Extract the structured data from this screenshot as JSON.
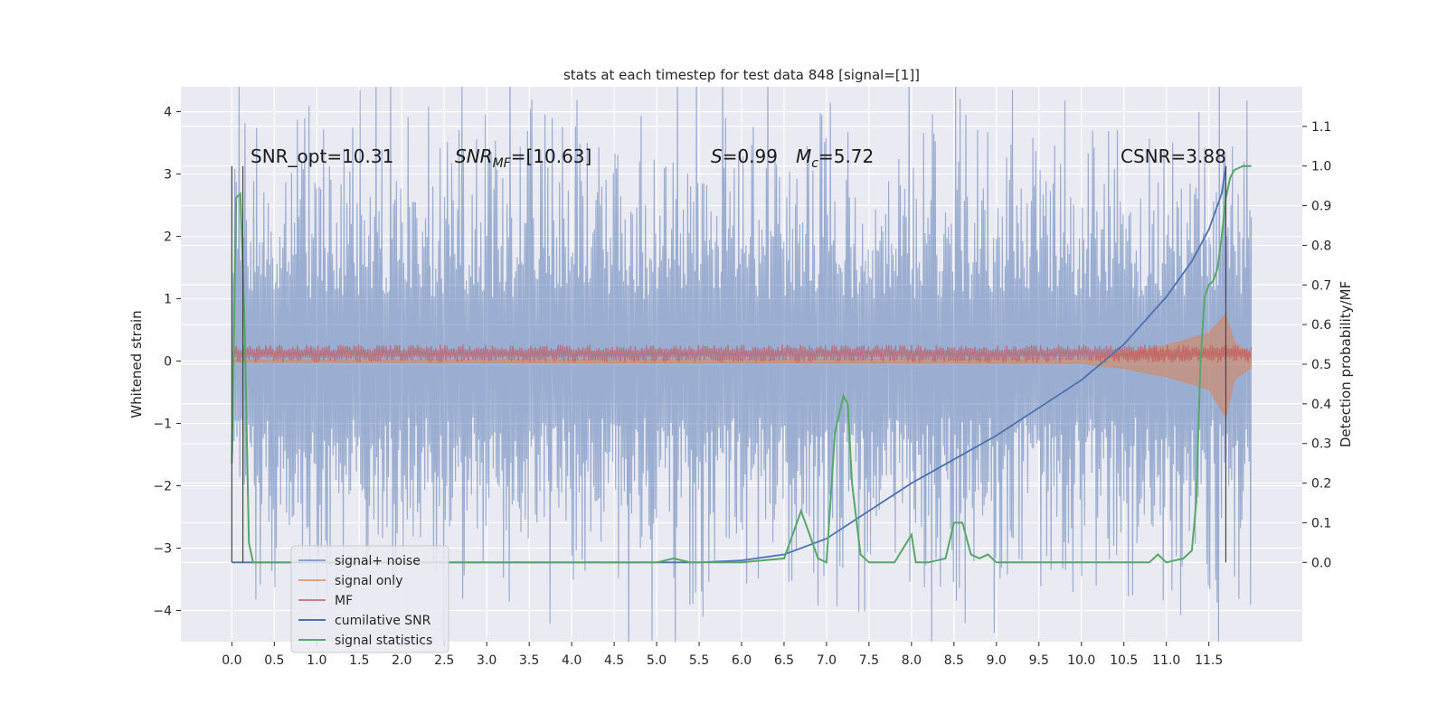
{
  "chart_data": {
    "type": "line",
    "title": "stats at each timestep for test data 848 [signal=[1]]",
    "ylabel": "Whitened strain",
    "y2label": "Detection probability/MF",
    "xlim": [
      -0.6,
      12.6
    ],
    "ylim": [
      -4.5,
      4.4
    ],
    "y2lim": [
      -0.2,
      1.2
    ],
    "x_ticks": [
      "0.0",
      "0.5",
      "1.0",
      "1.5",
      "2.0",
      "2.5",
      "3.0",
      "3.5",
      "4.0",
      "4.5",
      "5.0",
      "5.5",
      "6.0",
      "6.5",
      "7.0",
      "7.5",
      "8.0",
      "8.5",
      "9.0",
      "9.5",
      "10.0",
      "10.5",
      "11.0",
      "11.5"
    ],
    "y_ticks": [
      "4",
      "3",
      "2",
      "1",
      "0",
      "−1",
      "−2",
      "−3",
      "−4"
    ],
    "y2_ticks": [
      "1.1",
      "1.0",
      "0.9",
      "0.8",
      "0.7",
      "0.6",
      "0.5",
      "0.4",
      "0.3",
      "0.2",
      "0.1",
      "0.0"
    ],
    "grid": true,
    "legend_position": "lower-left",
    "annotations": [
      {
        "key": "snr_opt",
        "text": "SNR_opt=10.31"
      },
      {
        "key": "snr_mf",
        "text": "SNR_MF=[10.63]"
      },
      {
        "key": "s",
        "text": "S=0.99"
      },
      {
        "key": "mc",
        "text": "M_c=5.72"
      },
      {
        "key": "csnr",
        "text": "CSNR=3.88"
      }
    ],
    "series": [
      {
        "name": "signal+ noise",
        "color": "#4c72b0",
        "axis": "left",
        "x_range": [
          0.0,
          12.0
        ],
        "envelope": [
          -2.6,
          3.1
        ],
        "peaks_max": 3.98,
        "peaks_min": -4.1
      },
      {
        "name": "signal only",
        "color": "#dd8452",
        "axis": "left",
        "x": [
          0.0,
          10.0,
          10.5,
          11.0,
          11.5,
          11.7,
          11.8,
          12.0
        ],
        "upper": [
          0.02,
          0.04,
          0.12,
          0.25,
          0.45,
          0.75,
          0.3,
          0.1
        ],
        "lower": [
          -0.02,
          -0.04,
          -0.12,
          -0.25,
          -0.45,
          -0.9,
          -0.3,
          -0.1
        ]
      },
      {
        "name": "MF",
        "color": "#c44e52",
        "axis": "left",
        "x_range": [
          0.0,
          12.0
        ],
        "center": 0.12,
        "amplitude": 0.12
      },
      {
        "name": "cumilative SNR",
        "color": "#4c72b0",
        "axis": "right",
        "x": [
          0.0,
          5.5,
          6.0,
          6.5,
          7.0,
          7.5,
          8.0,
          8.5,
          9.0,
          9.5,
          10.0,
          10.5,
          11.0,
          11.3,
          11.5,
          11.65,
          11.7
        ],
        "y": [
          0.0,
          0.0,
          0.005,
          0.02,
          0.06,
          0.13,
          0.2,
          0.26,
          0.32,
          0.39,
          0.46,
          0.55,
          0.67,
          0.76,
          0.84,
          0.93,
          1.0
        ]
      },
      {
        "name": "signal statistics",
        "color": "#55a868",
        "axis": "right",
        "x": [
          0.0,
          0.05,
          0.1,
          0.15,
          0.2,
          0.25,
          0.3,
          5.0,
          5.2,
          5.4,
          5.6,
          6.0,
          6.5,
          6.7,
          6.8,
          6.9,
          7.0,
          7.1,
          7.2,
          7.25,
          7.3,
          7.4,
          7.5,
          7.6,
          7.8,
          8.0,
          8.05,
          8.1,
          8.2,
          8.4,
          8.5,
          8.6,
          8.7,
          8.8,
          8.9,
          9.0,
          9.5,
          10.5,
          10.8,
          10.9,
          11.0,
          11.2,
          11.3,
          11.35,
          11.4,
          11.45,
          11.5,
          11.55,
          11.6,
          11.65,
          11.7,
          11.75,
          11.8,
          11.9,
          12.0
        ],
        "y": [
          0.25,
          0.92,
          0.93,
          0.6,
          0.05,
          0.0,
          0.0,
          0.0,
          0.01,
          0.0,
          0.0,
          0.0,
          0.01,
          0.13,
          0.07,
          0.01,
          0.0,
          0.33,
          0.42,
          0.4,
          0.2,
          0.02,
          0.0,
          0.0,
          0.0,
          0.07,
          0.0,
          0.0,
          0.0,
          0.01,
          0.1,
          0.1,
          0.02,
          0.01,
          0.02,
          0.0,
          0.0,
          0.0,
          0.0,
          0.02,
          0.0,
          0.01,
          0.03,
          0.15,
          0.5,
          0.67,
          0.7,
          0.71,
          0.74,
          0.82,
          0.92,
          0.97,
          0.99,
          1.0,
          1.0
        ]
      }
    ],
    "vlines": [
      0.0,
      0.13,
      11.7
    ],
    "colors": {
      "plot_bg": "#eaeaf2",
      "grid": "#ffffff"
    }
  }
}
